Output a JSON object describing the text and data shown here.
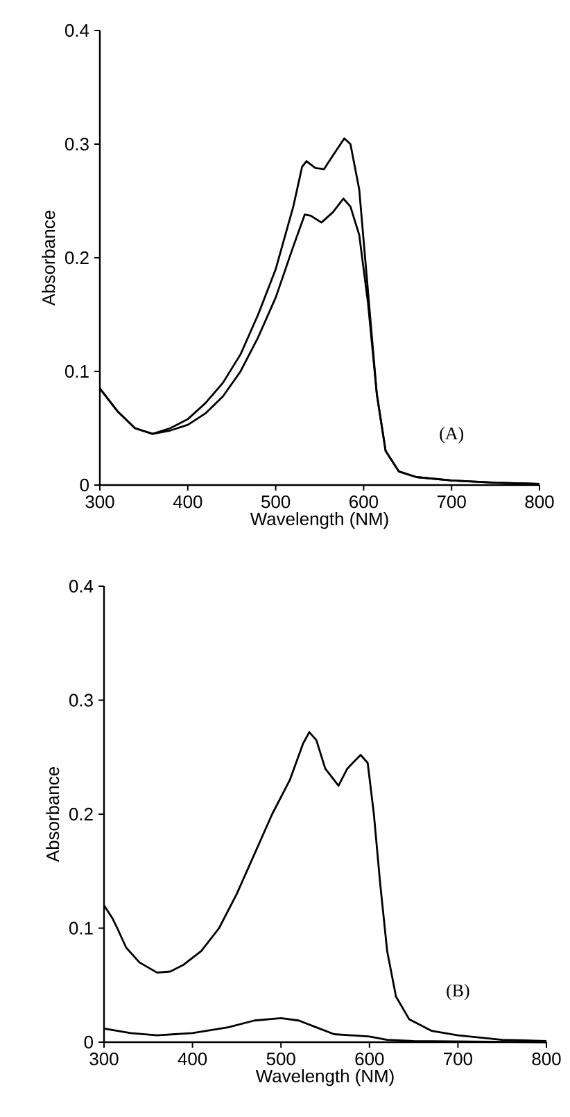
{
  "chart_data": [
    {
      "type": "line",
      "xlabel": "Wavelength (NM)",
      "ylabel": "Absorbance",
      "xlim": [
        300,
        800
      ],
      "ylim": [
        0,
        0.4
      ],
      "xticks": [
        300,
        400,
        500,
        600,
        700,
        800
      ],
      "yticks": [
        0,
        0.1,
        0.2,
        0.3,
        0.4
      ],
      "annotations": [
        "(A)"
      ],
      "series": [
        {
          "color": "#000000",
          "x": [
            300,
            320,
            340,
            360,
            380,
            400,
            420,
            440,
            460,
            480,
            500,
            520,
            530,
            535,
            545,
            555,
            565,
            578,
            585,
            595,
            605,
            615,
            625,
            640,
            660,
            700,
            750,
            800
          ],
          "values": [
            0.085,
            0.065,
            0.05,
            0.045,
            0.05,
            0.058,
            0.072,
            0.09,
            0.115,
            0.15,
            0.19,
            0.245,
            0.28,
            0.285,
            0.279,
            0.278,
            0.29,
            0.305,
            0.3,
            0.26,
            0.17,
            0.08,
            0.03,
            0.012,
            0.007,
            0.004,
            0.002,
            0.001
          ]
        },
        {
          "color": "#000000",
          "x": [
            300,
            320,
            340,
            360,
            380,
            400,
            420,
            440,
            460,
            480,
            500,
            520,
            533,
            540,
            552,
            565,
            577,
            585,
            595,
            605,
            615,
            625,
            640,
            660,
            700,
            750,
            800
          ],
          "values": [
            0.085,
            0.065,
            0.05,
            0.045,
            0.048,
            0.053,
            0.063,
            0.078,
            0.1,
            0.13,
            0.165,
            0.21,
            0.238,
            0.237,
            0.231,
            0.24,
            0.252,
            0.245,
            0.22,
            0.16,
            0.08,
            0.03,
            0.012,
            0.007,
            0.004,
            0.002,
            0.001
          ]
        }
      ]
    },
    {
      "type": "line",
      "xlabel": "Wavelength (NM)",
      "ylabel": "Absorbance",
      "xlim": [
        300,
        800
      ],
      "ylim": [
        0,
        0.4
      ],
      "xticks": [
        300,
        400,
        500,
        600,
        700,
        800
      ],
      "yticks": [
        0,
        0.1,
        0.2,
        0.3,
        0.4
      ],
      "annotations": [
        "(B)"
      ],
      "series": [
        {
          "color": "#000000",
          "x": [
            300,
            310,
            315,
            325,
            340,
            360,
            375,
            390,
            410,
            430,
            450,
            470,
            490,
            510,
            525,
            532,
            540,
            550,
            565,
            575,
            590,
            598,
            605,
            612,
            620,
            630,
            645,
            670,
            700,
            750,
            800
          ],
          "values": [
            0.12,
            0.108,
            0.1,
            0.083,
            0.07,
            0.061,
            0.062,
            0.068,
            0.08,
            0.1,
            0.13,
            0.165,
            0.2,
            0.23,
            0.262,
            0.272,
            0.265,
            0.24,
            0.225,
            0.24,
            0.252,
            0.245,
            0.2,
            0.14,
            0.08,
            0.04,
            0.02,
            0.01,
            0.006,
            0.002,
            0.001
          ]
        },
        {
          "color": "#000000",
          "x": [
            300,
            330,
            360,
            400,
            440,
            470,
            500,
            520,
            540,
            560,
            600,
            620,
            650,
            800
          ],
          "values": [
            0.012,
            0.008,
            0.006,
            0.008,
            0.013,
            0.019,
            0.021,
            0.019,
            0.013,
            0.007,
            0.005,
            0.002,
            0.001,
            0
          ]
        }
      ]
    }
  ]
}
